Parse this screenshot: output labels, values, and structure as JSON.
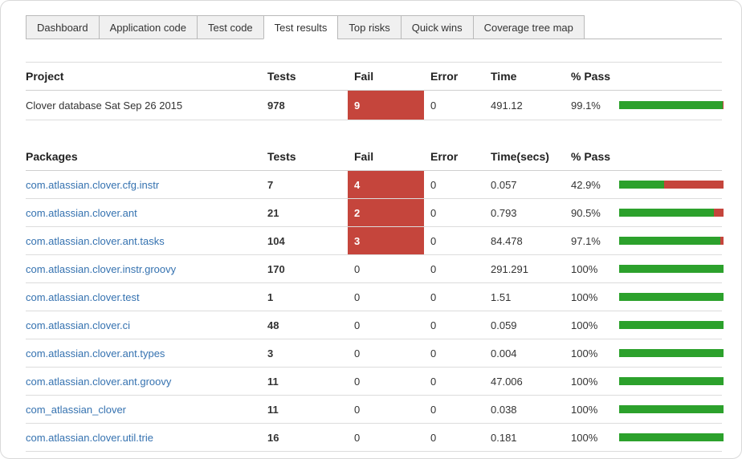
{
  "tabs": [
    {
      "label": "Dashboard",
      "active": false
    },
    {
      "label": "Application code",
      "active": false
    },
    {
      "label": "Test code",
      "active": false
    },
    {
      "label": "Test results",
      "active": true
    },
    {
      "label": "Top risks",
      "active": false
    },
    {
      "label": "Quick wins",
      "active": false
    },
    {
      "label": "Coverage tree map",
      "active": false
    }
  ],
  "project_table": {
    "headers": {
      "name": "Project",
      "tests": "Tests",
      "fail": "Fail",
      "error": "Error",
      "time": "Time",
      "pass": "% Pass"
    },
    "rows": [
      {
        "name": "Clover database Sat Sep 26 2015",
        "tests": "978",
        "fail": "9",
        "error": "0",
        "time": "491.12",
        "pass": "99.1%",
        "pass_pct": 99.1,
        "fail_highlight": true,
        "link": false
      }
    ]
  },
  "packages_table": {
    "headers": {
      "name": "Packages",
      "tests": "Tests",
      "fail": "Fail",
      "error": "Error",
      "time": "Time(secs)",
      "pass": "% Pass"
    },
    "rows": [
      {
        "name": "com.atlassian.clover.cfg.instr",
        "tests": "7",
        "fail": "4",
        "error": "0",
        "time": "0.057",
        "pass": "42.9%",
        "pass_pct": 42.9,
        "fail_highlight": true,
        "link": true
      },
      {
        "name": "com.atlassian.clover.ant",
        "tests": "21",
        "fail": "2",
        "error": "0",
        "time": "0.793",
        "pass": "90.5%",
        "pass_pct": 90.5,
        "fail_highlight": true,
        "link": true
      },
      {
        "name": "com.atlassian.clover.ant.tasks",
        "tests": "104",
        "fail": "3",
        "error": "0",
        "time": "84.478",
        "pass": "97.1%",
        "pass_pct": 97.1,
        "fail_highlight": true,
        "link": true
      },
      {
        "name": "com.atlassian.clover.instr.groovy",
        "tests": "170",
        "fail": "0",
        "error": "0",
        "time": "291.291",
        "pass": "100%",
        "pass_pct": 100,
        "fail_highlight": false,
        "link": true
      },
      {
        "name": "com.atlassian.clover.test",
        "tests": "1",
        "fail": "0",
        "error": "0",
        "time": "1.51",
        "pass": "100%",
        "pass_pct": 100,
        "fail_highlight": false,
        "link": true
      },
      {
        "name": "com.atlassian.clover.ci",
        "tests": "48",
        "fail": "0",
        "error": "0",
        "time": "0.059",
        "pass": "100%",
        "pass_pct": 100,
        "fail_highlight": false,
        "link": true
      },
      {
        "name": "com.atlassian.clover.ant.types",
        "tests": "3",
        "fail": "0",
        "error": "0",
        "time": "0.004",
        "pass": "100%",
        "pass_pct": 100,
        "fail_highlight": false,
        "link": true
      },
      {
        "name": "com.atlassian.clover.ant.groovy",
        "tests": "11",
        "fail": "0",
        "error": "0",
        "time": "47.006",
        "pass": "100%",
        "pass_pct": 100,
        "fail_highlight": false,
        "link": true
      },
      {
        "name": "com_atlassian_clover",
        "tests": "11",
        "fail": "0",
        "error": "0",
        "time": "0.038",
        "pass": "100%",
        "pass_pct": 100,
        "fail_highlight": false,
        "link": true
      },
      {
        "name": "com.atlassian.clover.util.trie",
        "tests": "16",
        "fail": "0",
        "error": "0",
        "time": "0.181",
        "pass": "100%",
        "pass_pct": 100,
        "fail_highlight": false,
        "link": true
      }
    ]
  },
  "colors": {
    "fail_red": "#c5453c",
    "bar_green": "#2ca12c",
    "bar_red": "#c5453c",
    "link_blue": "#3572b0"
  }
}
